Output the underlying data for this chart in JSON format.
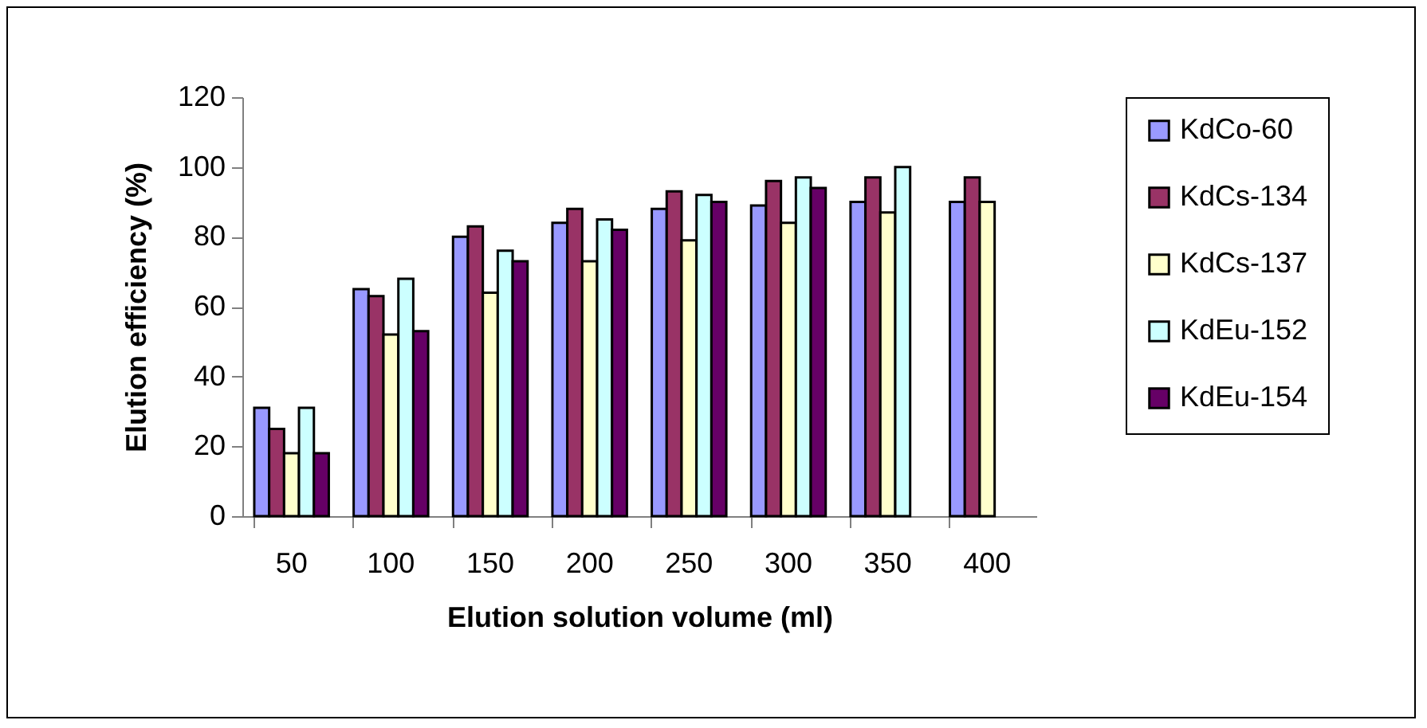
{
  "chart_data": {
    "type": "bar",
    "xlabel": "Elution solution volume (ml)",
    "ylabel": "Elution efficiency (%)",
    "categories": [
      "50",
      "100",
      "150",
      "200",
      "250",
      "300",
      "350",
      "400"
    ],
    "ylim": [
      0,
      120
    ],
    "yticks": [
      0,
      20,
      40,
      60,
      80,
      100,
      120
    ],
    "grid": false,
    "legend": "right",
    "series": [
      {
        "name": "KdCo-60",
        "color": "#9999ff",
        "values": [
          31,
          65,
          80,
          84,
          88,
          89,
          90,
          90
        ]
      },
      {
        "name": "KdCs-134",
        "color": "#993366",
        "values": [
          25,
          63,
          83,
          88,
          93,
          96,
          97,
          97
        ]
      },
      {
        "name": "KdCs-137",
        "color": "#ffffcc",
        "values": [
          18,
          52,
          64,
          73,
          79,
          84,
          87,
          90
        ]
      },
      {
        "name": "KdEu-152",
        "color": "#ccffff",
        "values": [
          31,
          68,
          76,
          85,
          92,
          97,
          100,
          null
        ]
      },
      {
        "name": "KdEu-154",
        "color": "#660066",
        "values": [
          18,
          53,
          73,
          82,
          90,
          94,
          null,
          null
        ]
      }
    ]
  }
}
